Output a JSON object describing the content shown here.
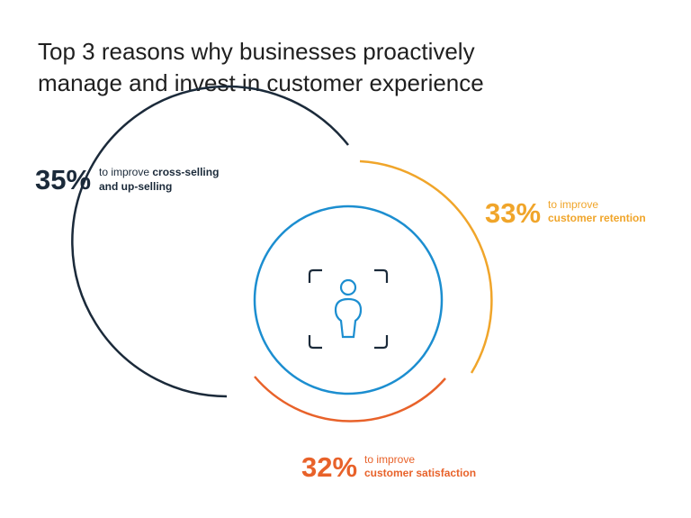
{
  "title_lines": [
    "Top 3 reasons why businesses proactively",
    "manage and invest in customer experience"
  ],
  "reasons": [
    {
      "percent": "35%",
      "line1": "to improve",
      "line1_bold": "cross-selling",
      "line2": "and up-selling"
    },
    {
      "percent": "33%",
      "line1": "to improve",
      "line2": "customer retention"
    },
    {
      "percent": "32%",
      "line1": "to improve",
      "line2": "customer satisfaction"
    }
  ]
}
